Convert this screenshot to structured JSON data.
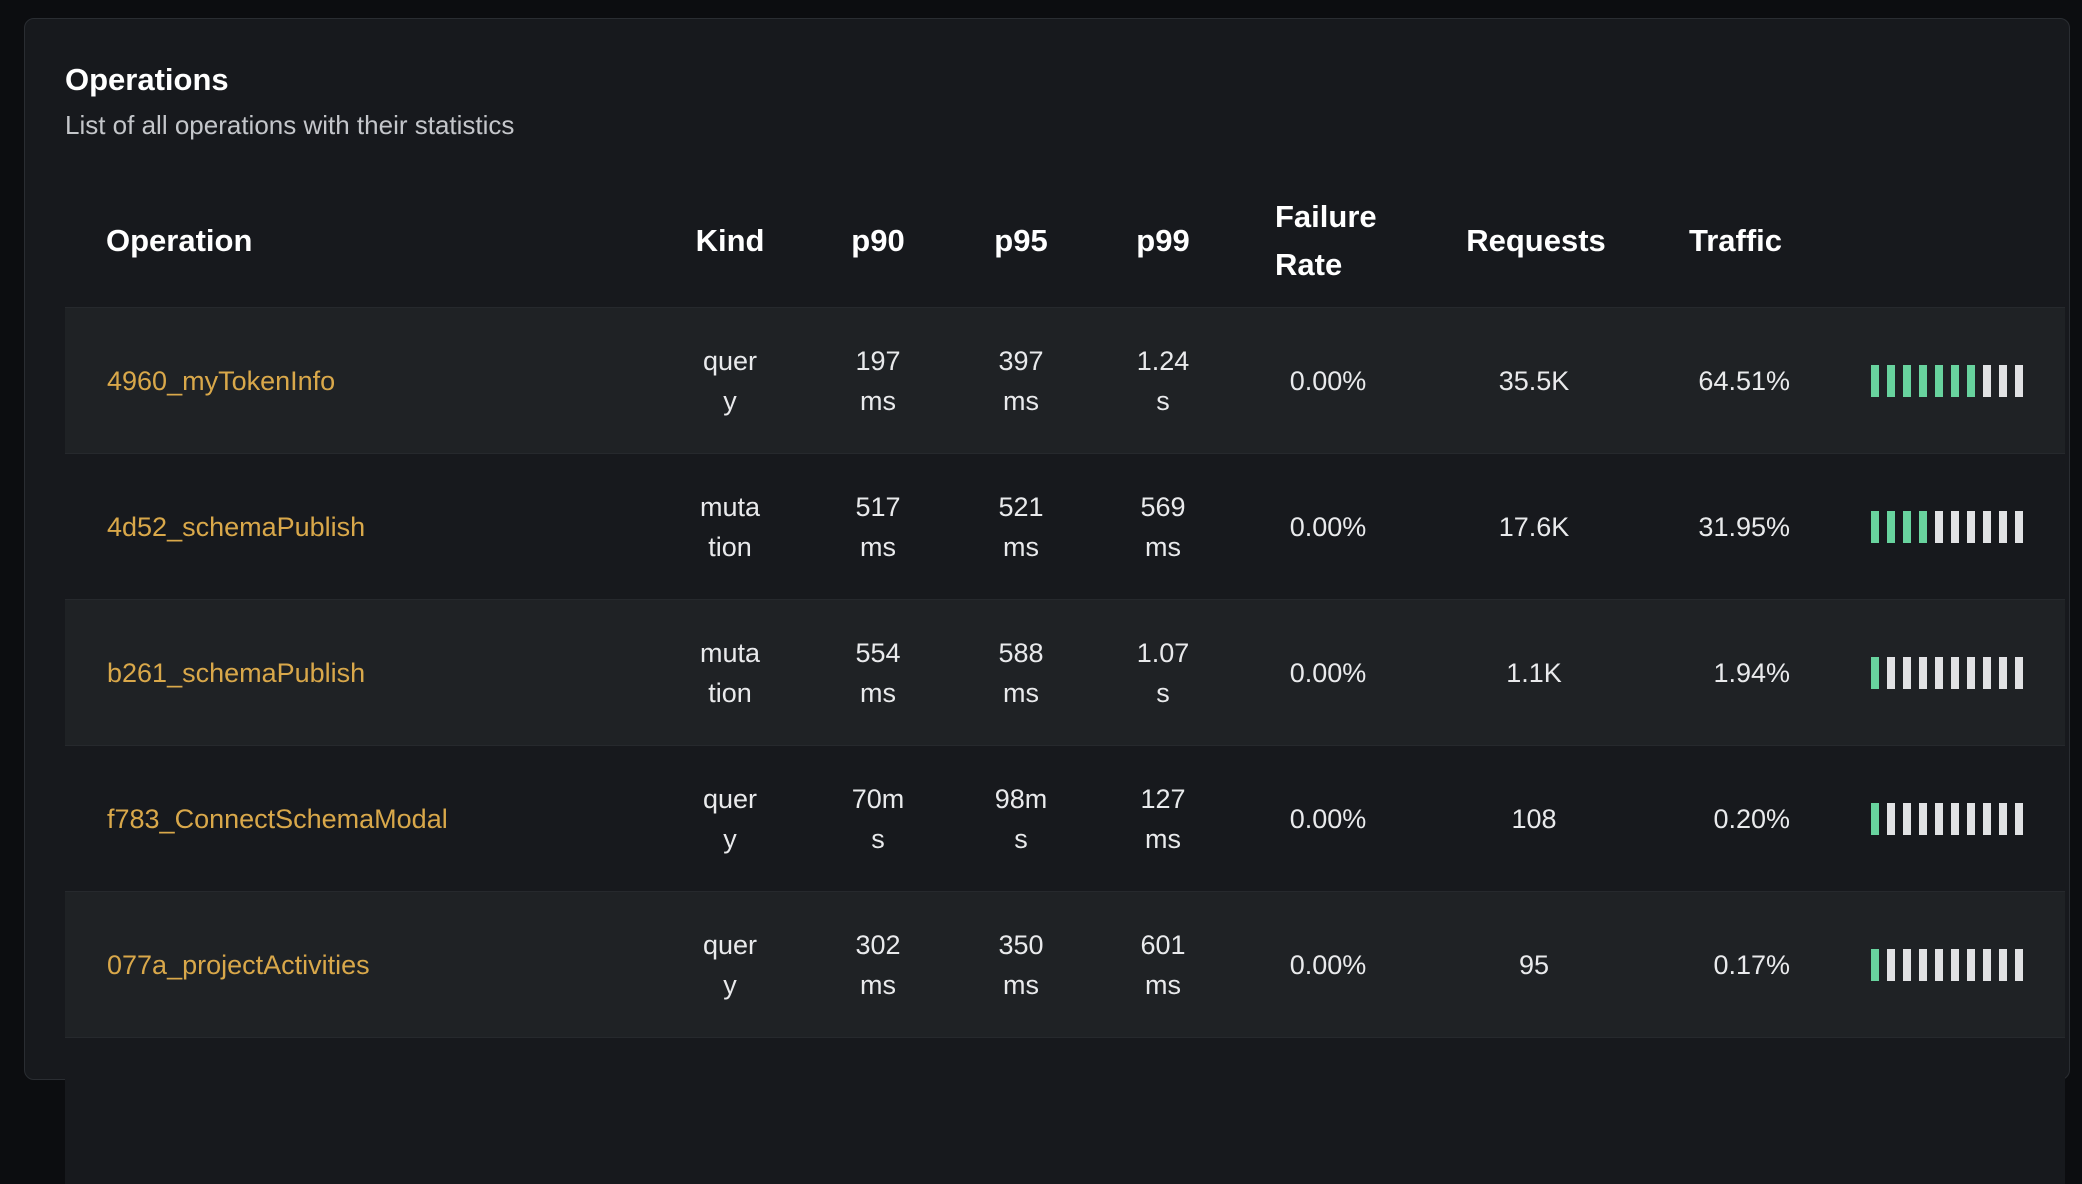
{
  "panel": {
    "title": "Operations",
    "subtitle": "List of all operations with their statistics"
  },
  "table": {
    "headers": {
      "operation": "Operation",
      "kind": "Kind",
      "p90": "p90",
      "p95": "p95",
      "p99": "p99",
      "failure_rate": "Failure Rate",
      "requests": "Requests",
      "traffic": "Traffic"
    },
    "rows": [
      {
        "operation": "4960_myTokenInfo",
        "kind": "query",
        "p90": "197 ms",
        "p95": "397 ms",
        "p99": "1.24 s",
        "failure_rate": "0.00%",
        "requests": "35.5K",
        "traffic": "64.51%",
        "traffic_bars_filled": 7
      },
      {
        "operation": "4d52_schemaPublish",
        "kind": "mutation",
        "p90": "517 ms",
        "p95": "521 ms",
        "p99": "569 ms",
        "failure_rate": "0.00%",
        "requests": "17.6K",
        "traffic": "31.95%",
        "traffic_bars_filled": 4
      },
      {
        "operation": "b261_schemaPublish",
        "kind": "mutation",
        "p90": "554 ms",
        "p95": "588 ms",
        "p99": "1.07 s",
        "failure_rate": "0.00%",
        "requests": "1.1K",
        "traffic": "1.94%",
        "traffic_bars_filled": 1
      },
      {
        "operation": "f783_ConnectSchemaModal",
        "kind": "query",
        "p90": "70ms",
        "p95": "98ms",
        "p99": "127 ms",
        "failure_rate": "0.00%",
        "requests": "108",
        "traffic": "0.20%",
        "traffic_bars_filled": 1
      },
      {
        "operation": "077a_projectActivities",
        "kind": "query",
        "p90": "302 ms",
        "p95": "350 ms",
        "p99": "601 ms",
        "failure_rate": "0.00%",
        "requests": "95",
        "traffic": "0.17%",
        "traffic_bars_filled": 1
      }
    ],
    "traffic_bar_count": 10
  },
  "colors": {
    "operation_link": "#d9a84a",
    "traffic_filled": "#68d39e",
    "traffic_empty": "#e1e2e4"
  }
}
